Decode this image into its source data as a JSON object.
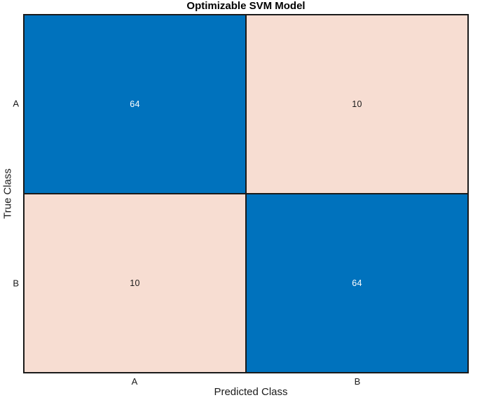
{
  "chart_data": {
    "type": "heatmap",
    "subtype": "confusion-matrix",
    "title": "Optimizable SVM Model",
    "xlabel": "Predicted Class",
    "ylabel": "True Class",
    "x_categories": [
      "A",
      "B"
    ],
    "y_categories": [
      "A",
      "B"
    ],
    "matrix": [
      [
        64,
        10
      ],
      [
        10,
        64
      ]
    ],
    "colors": {
      "diagonal": "#0072BD",
      "off_diagonal": "#F7DDD2",
      "grid": "#1a1a1a",
      "value_on_diagonal": "#FFFFFF",
      "value_on_off_diagonal": "#1a1a1a",
      "background": "#FFFFFF"
    },
    "legend": "none",
    "grid": true
  }
}
